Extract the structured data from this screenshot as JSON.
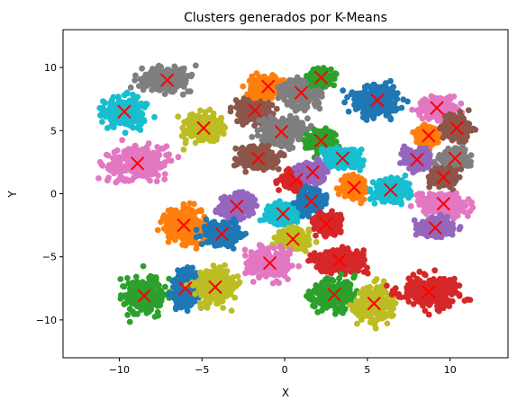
{
  "chart_data": {
    "type": "scatter",
    "title": "Clusters generados por K-Means",
    "xlabel": "X",
    "ylabel": "Y",
    "xlim": [
      -13.4,
      13.5
    ],
    "ylim": [
      -13.0,
      13.0
    ],
    "x_ticks": [
      -10,
      -5,
      0,
      5,
      10
    ],
    "y_ticks": [
      -10,
      -5,
      0,
      5,
      10
    ],
    "x_tick_labels": [
      "−10",
      "−5",
      "0",
      "5",
      "10"
    ],
    "y_tick_labels": [
      "−10",
      "−5",
      "0",
      "5",
      "10"
    ],
    "grid": false,
    "legend": "none",
    "centroid_marker": "x",
    "centroid_color": "#ff0000",
    "clusters": [
      {
        "centroid": [
          -7.1,
          9.0
        ],
        "spread": [
          1.9,
          1.2
        ],
        "color": "#7f7f7f"
      },
      {
        "centroid": [
          -9.7,
          6.5
        ],
        "spread": [
          1.6,
          1.4
        ],
        "color": "#17becf"
      },
      {
        "centroid": [
          -4.9,
          5.2
        ],
        "spread": [
          1.5,
          1.3
        ],
        "color": "#bcbd22"
      },
      {
        "centroid": [
          -8.9,
          2.4
        ],
        "spread": [
          2.3,
          1.6
        ],
        "color": "#e377c2"
      },
      {
        "centroid": [
          -1.8,
          6.6
        ],
        "spread": [
          1.3,
          1.2
        ],
        "color": "#8c564b"
      },
      {
        "centroid": [
          -1.0,
          8.5
        ],
        "spread": [
          1.5,
          1.0
        ],
        "color": "#ff7f0e"
      },
      {
        "centroid": [
          1.0,
          8.0
        ],
        "spread": [
          1.4,
          1.4
        ],
        "color": "#7f7f7f"
      },
      {
        "centroid": [
          2.2,
          9.2
        ],
        "spread": [
          0.8,
          0.8
        ],
        "color": "#2ca02c"
      },
      {
        "centroid": [
          5.6,
          7.4
        ],
        "spread": [
          1.8,
          1.6
        ],
        "color": "#1f77b4"
      },
      {
        "centroid": [
          9.2,
          6.8
        ],
        "spread": [
          1.4,
          1.0
        ],
        "color": "#e377c2"
      },
      {
        "centroid": [
          8.7,
          4.6
        ],
        "spread": [
          0.9,
          0.8
        ],
        "color": "#ff7f0e"
      },
      {
        "centroid": [
          10.4,
          5.2
        ],
        "spread": [
          1.0,
          1.1
        ],
        "color": "#8c564b"
      },
      {
        "centroid": [
          -0.2,
          4.9
        ],
        "spread": [
          1.5,
          1.4
        ],
        "color": "#7f7f7f"
      },
      {
        "centroid": [
          2.2,
          4.2
        ],
        "spread": [
          1.1,
          1.0
        ],
        "color": "#2ca02c"
      },
      {
        "centroid": [
          -1.6,
          2.8
        ],
        "spread": [
          1.4,
          1.1
        ],
        "color": "#8c564b"
      },
      {
        "centroid": [
          3.5,
          2.8
        ],
        "spread": [
          1.3,
          1.0
        ],
        "color": "#17becf"
      },
      {
        "centroid": [
          8.0,
          2.7
        ],
        "spread": [
          1.0,
          0.9
        ],
        "color": "#9467bd"
      },
      {
        "centroid": [
          10.3,
          2.8
        ],
        "spread": [
          1.0,
          1.0
        ],
        "color": "#7f7f7f"
      },
      {
        "centroid": [
          0.7,
          1.1
        ],
        "spread": [
          1.0,
          1.0
        ],
        "color": "#d62728"
      },
      {
        "centroid": [
          1.7,
          1.7
        ],
        "spread": [
          0.9,
          0.9
        ],
        "color": "#9467bd"
      },
      {
        "centroid": [
          4.2,
          0.5
        ],
        "spread": [
          0.9,
          1.0
        ],
        "color": "#ff7f0e"
      },
      {
        "centroid": [
          6.4,
          0.3
        ],
        "spread": [
          1.3,
          1.1
        ],
        "color": "#17becf"
      },
      {
        "centroid": [
          9.6,
          1.3
        ],
        "spread": [
          1.0,
          0.8
        ],
        "color": "#8c564b"
      },
      {
        "centroid": [
          9.6,
          -0.8
        ],
        "spread": [
          1.7,
          1.0
        ],
        "color": "#e377c2"
      },
      {
        "centroid": [
          9.1,
          -2.7
        ],
        "spread": [
          1.4,
          0.9
        ],
        "color": "#9467bd"
      },
      {
        "centroid": [
          -6.1,
          -2.5
        ],
        "spread": [
          1.5,
          1.7
        ],
        "color": "#ff7f0e"
      },
      {
        "centroid": [
          -2.9,
          -1.0
        ],
        "spread": [
          1.2,
          1.1
        ],
        "color": "#9467bd"
      },
      {
        "centroid": [
          -0.1,
          -1.6
        ],
        "spread": [
          1.2,
          1.0
        ],
        "color": "#17becf"
      },
      {
        "centroid": [
          1.6,
          -0.6
        ],
        "spread": [
          1.0,
          1.0
        ],
        "color": "#1f77b4"
      },
      {
        "centroid": [
          -3.8,
          -3.2
        ],
        "spread": [
          1.3,
          1.1
        ],
        "color": "#1f77b4"
      },
      {
        "centroid": [
          2.5,
          -2.4
        ],
        "spread": [
          1.1,
          1.0
        ],
        "color": "#d62728"
      },
      {
        "centroid": [
          0.5,
          -3.6
        ],
        "spread": [
          1.1,
          1.0
        ],
        "color": "#bcbd22"
      },
      {
        "centroid": [
          -0.9,
          -5.5
        ],
        "spread": [
          1.8,
          1.4
        ],
        "color": "#e377c2"
      },
      {
        "centroid": [
          3.3,
          -5.3
        ],
        "spread": [
          1.8,
          1.1
        ],
        "color": "#d62728"
      },
      {
        "centroid": [
          -8.5,
          -8.1
        ],
        "spread": [
          1.6,
          1.7
        ],
        "color": "#2ca02c"
      },
      {
        "centroid": [
          -6.0,
          -7.5
        ],
        "spread": [
          1.0,
          1.8
        ],
        "color": "#1f77b4"
      },
      {
        "centroid": [
          -4.2,
          -7.4
        ],
        "spread": [
          1.5,
          1.7
        ],
        "color": "#bcbd22"
      },
      {
        "centroid": [
          3.0,
          -8.0
        ],
        "spread": [
          1.6,
          1.5
        ],
        "color": "#2ca02c"
      },
      {
        "centroid": [
          5.4,
          -8.7
        ],
        "spread": [
          1.3,
          1.6
        ],
        "color": "#bcbd22"
      },
      {
        "centroid": [
          8.7,
          -7.8
        ],
        "spread": [
          2.1,
          1.6
        ],
        "color": "#d62728"
      }
    ]
  }
}
